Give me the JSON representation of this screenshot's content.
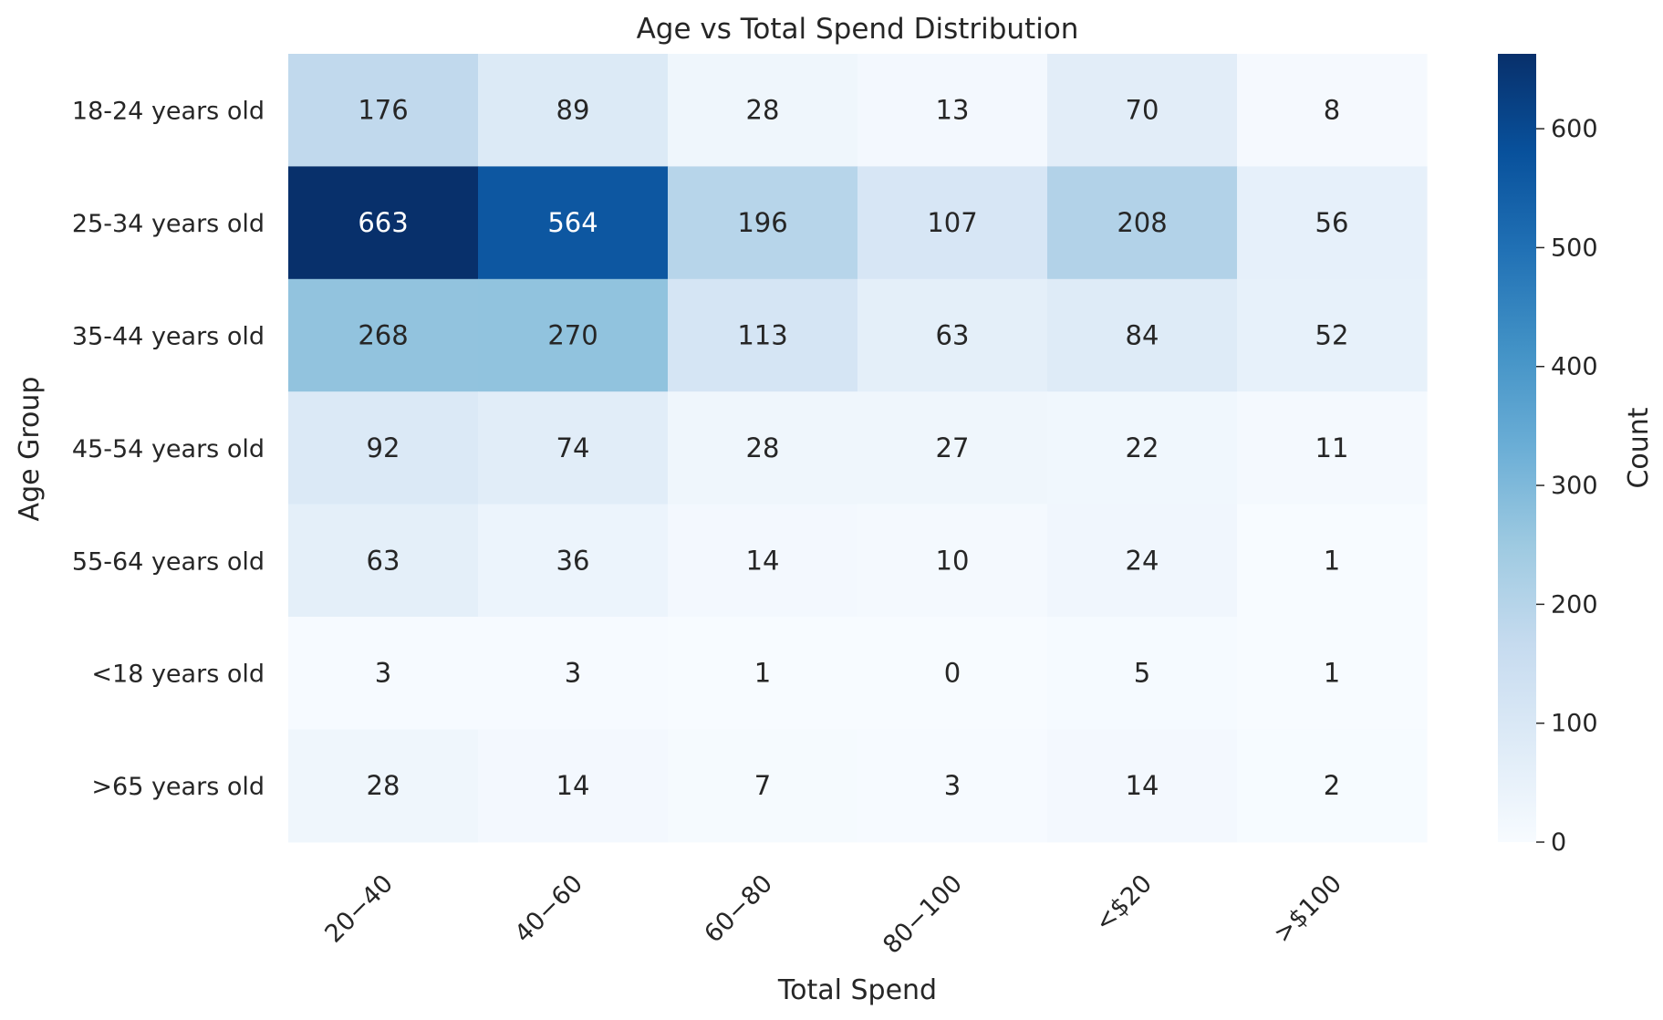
{
  "chart_data": {
    "type": "heatmap",
    "title": "Age vs Total Spend Distribution",
    "xlabel": "Total Spend",
    "ylabel": "Age Group",
    "x_categories": [
      "20−40",
      "40−60",
      "60−80",
      "80−100",
      "<$20",
      ">$100"
    ],
    "y_categories": [
      "18-24 years old",
      "25-34 years old",
      "35-44 years old",
      "45-54 years old",
      "55-64 years old",
      "<18 years old",
      ">65 years old"
    ],
    "values": [
      [
        176,
        89,
        28,
        13,
        70,
        8
      ],
      [
        663,
        564,
        196,
        107,
        208,
        56
      ],
      [
        268,
        270,
        113,
        63,
        84,
        52
      ],
      [
        92,
        74,
        28,
        27,
        22,
        11
      ],
      [
        63,
        36,
        14,
        10,
        24,
        1
      ],
      [
        3,
        3,
        1,
        0,
        5,
        1
      ],
      [
        28,
        14,
        7,
        3,
        14,
        2
      ]
    ],
    "colorbar": {
      "label": "Count",
      "min": 0,
      "max": 663,
      "ticks": [
        0,
        100,
        200,
        300,
        400,
        500,
        600
      ],
      "colormap": "Blues"
    },
    "grid": false
  }
}
